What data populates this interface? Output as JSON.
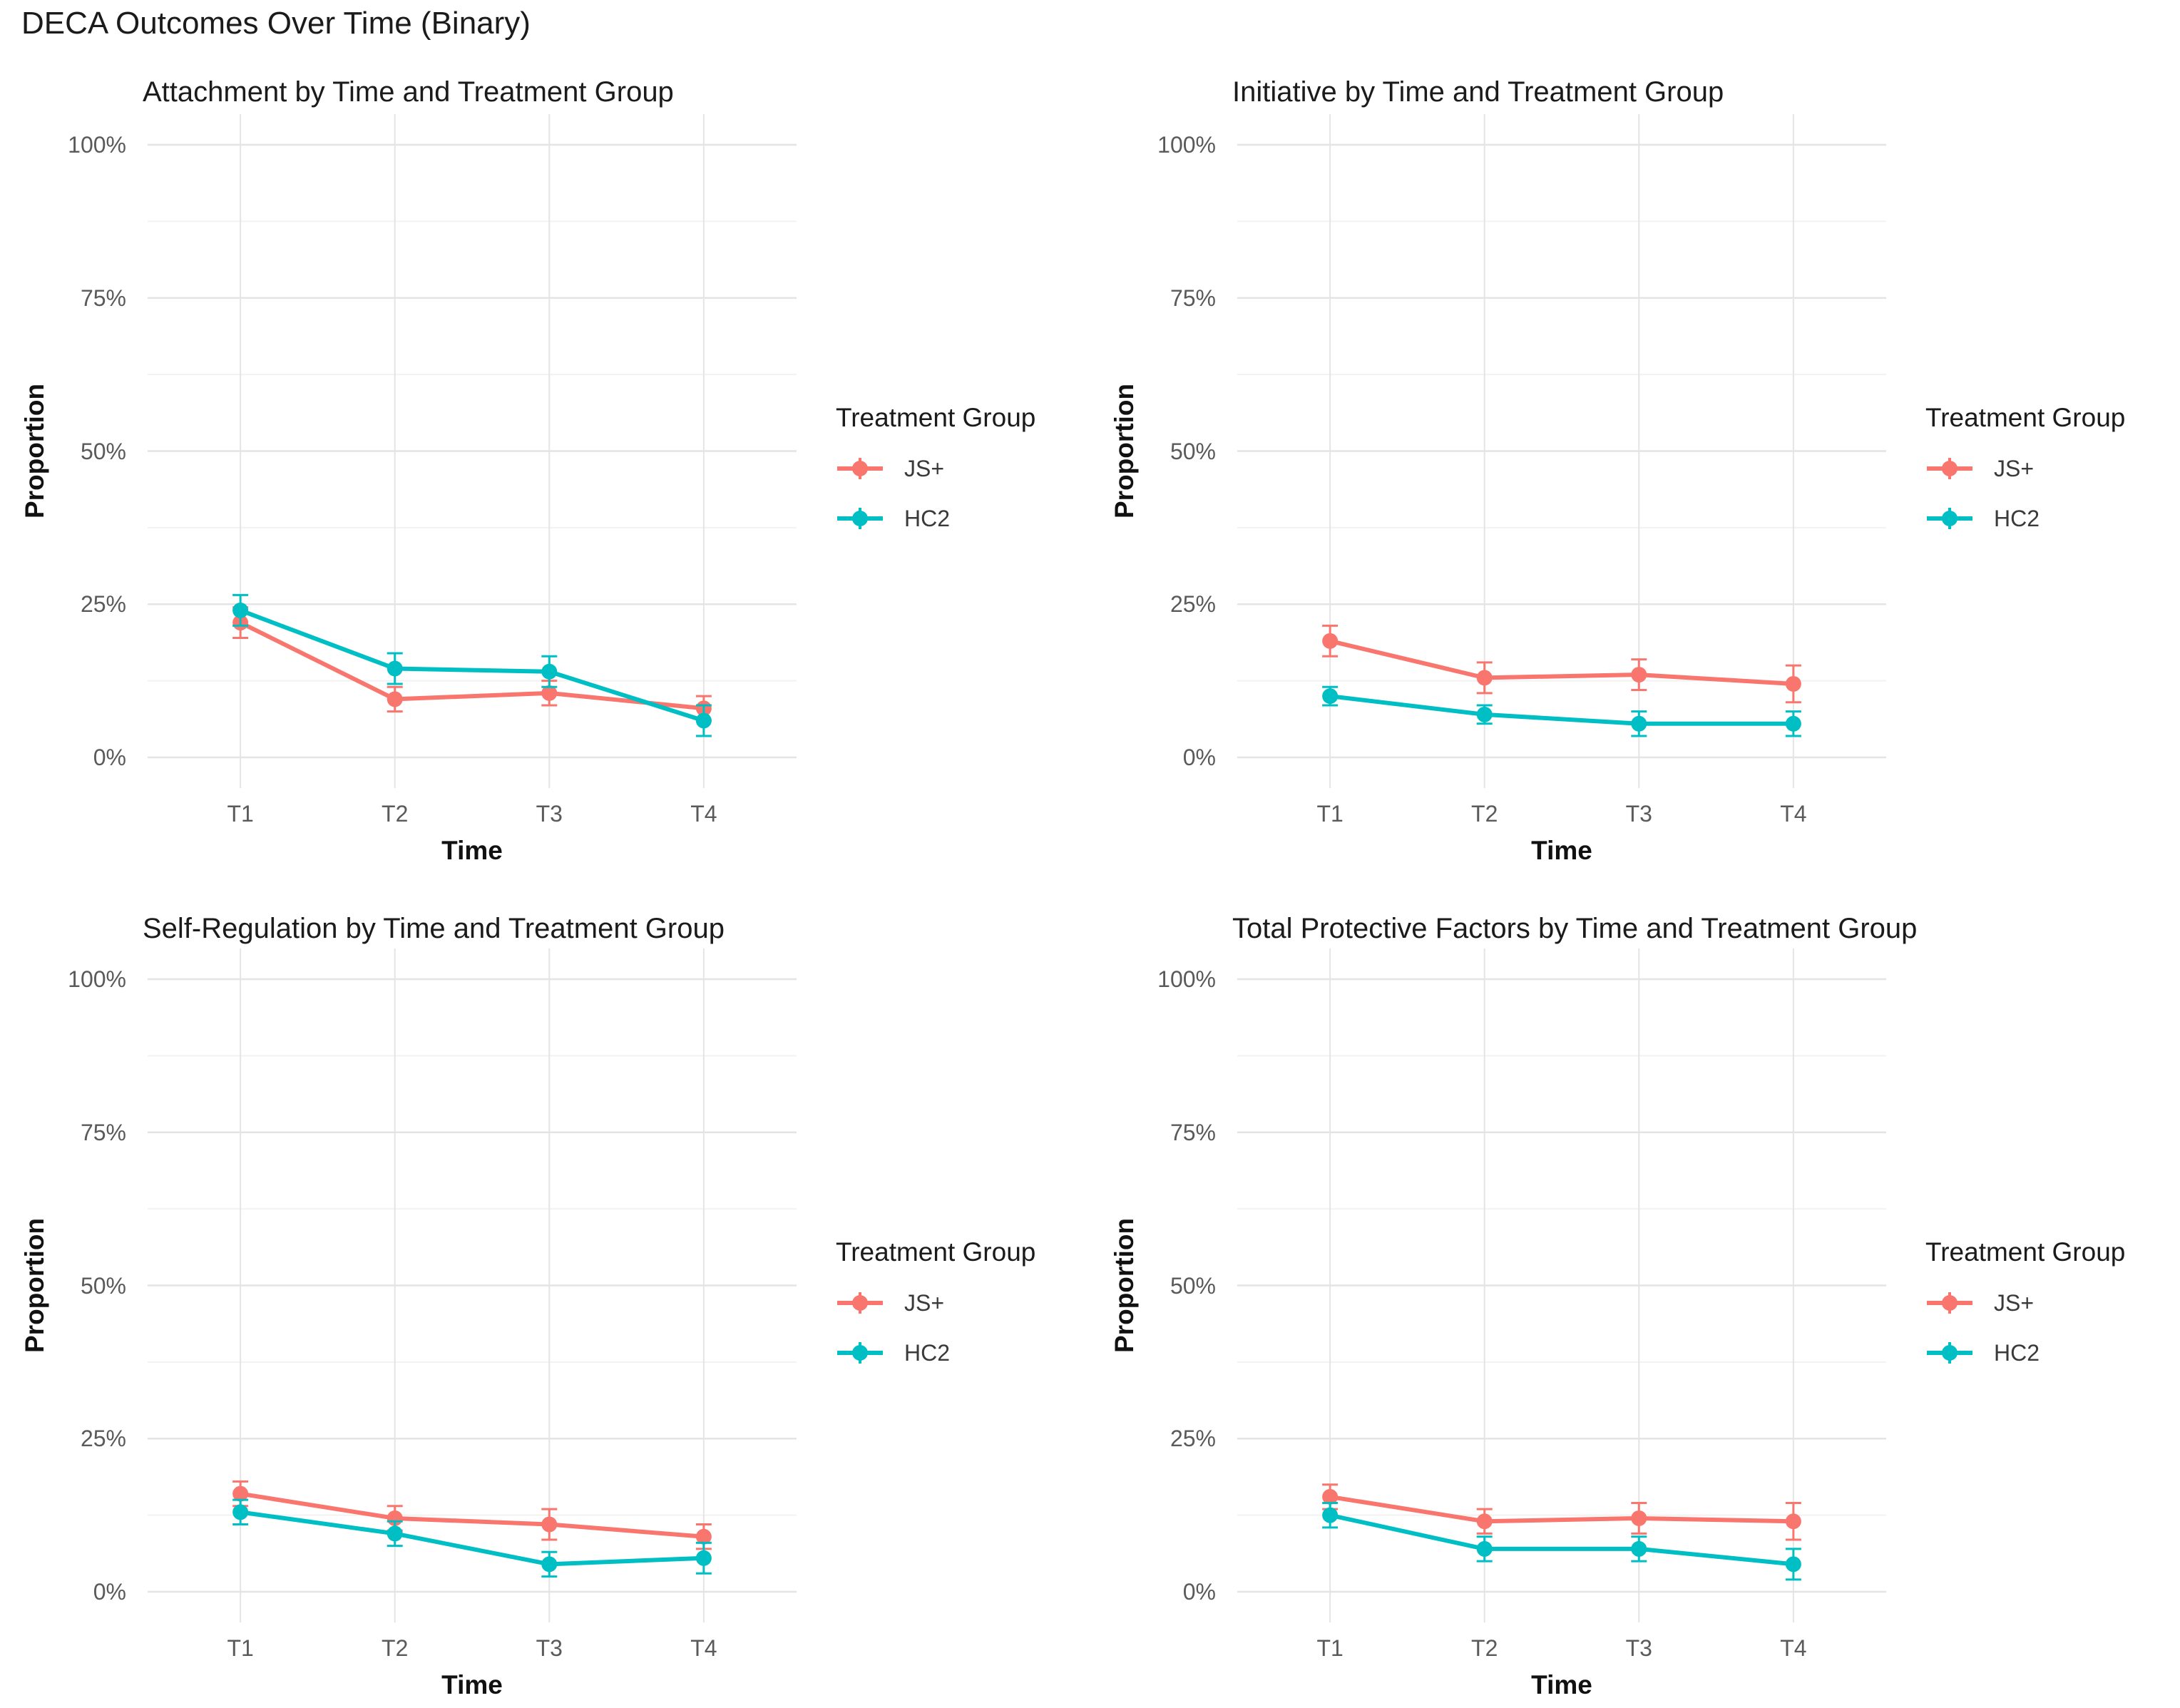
{
  "main_title": "DECA Outcomes Over Time (Binary)",
  "style": {
    "background": "#FFFFFF",
    "grid_major": "#E4E4E4",
    "grid_minor": "#F2F2F2",
    "text_dark": "#1B1B1B",
    "text_muted": "#5A5A5A",
    "js_plus_color": "#F8766D",
    "hc2_color": "#00BFC4"
  },
  "axes": {
    "x_label": "Time",
    "y_label": "Proportion",
    "x_ticks": [
      "T1",
      "T2",
      "T3",
      "T4"
    ],
    "y_ticks": [
      {
        "label": "0%",
        "value": 0
      },
      {
        "label": "25%",
        "value": 25
      },
      {
        "label": "50%",
        "value": 50
      },
      {
        "label": "75%",
        "value": 75
      },
      {
        "label": "100%",
        "value": 100
      }
    ]
  },
  "legend": {
    "title": "Treatment Group",
    "position": "right",
    "entries": [
      {
        "label": "JS+",
        "color": "#F8766D"
      },
      {
        "label": "HC2",
        "color": "#00BFC4"
      }
    ]
  },
  "chart_data": [
    {
      "type": "line",
      "title": "Attachment by Time and Treatment Group",
      "xlabel": "Time",
      "ylabel": "Proportion",
      "ylim": [
        0,
        100
      ],
      "grid": true,
      "legend_position": "right",
      "categories": [
        "T1",
        "T2",
        "T3",
        "T4"
      ],
      "series": [
        {
          "name": "JS+",
          "color": "#F8766D",
          "values": [
            22,
            9.5,
            10.5,
            8
          ],
          "errors": [
            2.5,
            2,
            2,
            2
          ]
        },
        {
          "name": "HC2",
          "color": "#00BFC4",
          "values": [
            24,
            14.5,
            14,
            6
          ],
          "errors": [
            2.5,
            2.5,
            2.5,
            2.5
          ]
        }
      ]
    },
    {
      "type": "line",
      "title": "Initiative by Time and Treatment Group",
      "xlabel": "Time",
      "ylabel": "Proportion",
      "ylim": [
        0,
        100
      ],
      "grid": true,
      "legend_position": "right",
      "categories": [
        "T1",
        "T2",
        "T3",
        "T4"
      ],
      "series": [
        {
          "name": "JS+",
          "color": "#F8766D",
          "values": [
            19,
            13,
            13.5,
            12
          ],
          "errors": [
            2.5,
            2.5,
            2.5,
            3
          ]
        },
        {
          "name": "HC2",
          "color": "#00BFC4",
          "values": [
            10,
            7,
            5.5,
            5.5
          ],
          "errors": [
            1.5,
            1.5,
            2,
            2
          ]
        }
      ]
    },
    {
      "type": "line",
      "title": "Self-Regulation by Time and Treatment Group",
      "xlabel": "Time",
      "ylabel": "Proportion",
      "ylim": [
        0,
        100
      ],
      "grid": true,
      "legend_position": "right",
      "categories": [
        "T1",
        "T2",
        "T3",
        "T4"
      ],
      "series": [
        {
          "name": "JS+",
          "color": "#F8766D",
          "values": [
            16,
            12,
            11,
            9
          ],
          "errors": [
            2,
            2,
            2.5,
            2
          ]
        },
        {
          "name": "HC2",
          "color": "#00BFC4",
          "values": [
            13,
            9.5,
            4.5,
            5.5
          ],
          "errors": [
            2,
            2,
            2,
            2.5
          ]
        }
      ]
    },
    {
      "type": "line",
      "title": "Total Protective Factors by Time and Treatment Group",
      "xlabel": "Time",
      "ylabel": "Proportion",
      "ylim": [
        0,
        100
      ],
      "grid": true,
      "legend_position": "right",
      "categories": [
        "T1",
        "T2",
        "T3",
        "T4"
      ],
      "series": [
        {
          "name": "JS+",
          "color": "#F8766D",
          "values": [
            15.5,
            11.5,
            12,
            11.5
          ],
          "errors": [
            2,
            2,
            2.5,
            3
          ]
        },
        {
          "name": "HC2",
          "color": "#00BFC4",
          "values": [
            12.5,
            7,
            7,
            4.5
          ],
          "errors": [
            2,
            2,
            2,
            2.5
          ]
        }
      ]
    }
  ]
}
